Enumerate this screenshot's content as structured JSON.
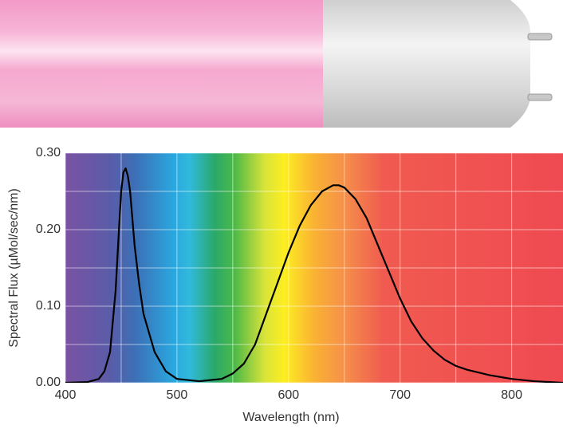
{
  "chart_data": {
    "type": "line",
    "x_label": "Wavelength (nm)",
    "y_label": "Spectral Flux (µMol/sec/nm)",
    "x": [
      400,
      420,
      430,
      435,
      440,
      445,
      448,
      450,
      452,
      454,
      456,
      458,
      462,
      466,
      470,
      480,
      490,
      500,
      520,
      540,
      550,
      560,
      570,
      580,
      590,
      600,
      610,
      620,
      630,
      640,
      645,
      650,
      660,
      670,
      680,
      690,
      700,
      710,
      720,
      730,
      740,
      750,
      760,
      780,
      800,
      820,
      846
    ],
    "values": [
      0,
      0.001,
      0.005,
      0.015,
      0.04,
      0.12,
      0.2,
      0.25,
      0.275,
      0.28,
      0.27,
      0.25,
      0.18,
      0.13,
      0.09,
      0.04,
      0.015,
      0.005,
      0.002,
      0.005,
      0.012,
      0.025,
      0.05,
      0.09,
      0.13,
      0.17,
      0.205,
      0.232,
      0.25,
      0.258,
      0.258,
      0.255,
      0.24,
      0.215,
      0.18,
      0.145,
      0.11,
      0.08,
      0.058,
      0.042,
      0.03,
      0.022,
      0.017,
      0.01,
      0.005,
      0.002,
      0
    ],
    "color": "#000000",
    "xlim": [
      400,
      846
    ],
    "ylim": [
      0,
      0.3
    ],
    "xticks": [
      400,
      500,
      600,
      700,
      800
    ],
    "yticks": [
      {
        "value": 0,
        "label": "0.00"
      },
      {
        "value": 0.1,
        "label": "0.10"
      },
      {
        "value": 0.2,
        "label": "0.20"
      },
      {
        "value": 0.3,
        "label": "0.30"
      }
    ],
    "x_minor_grid": [
      450,
      550,
      650,
      750
    ],
    "y_minor_grid": [
      0.05,
      0.15,
      0.25
    ],
    "grid": true
  }
}
